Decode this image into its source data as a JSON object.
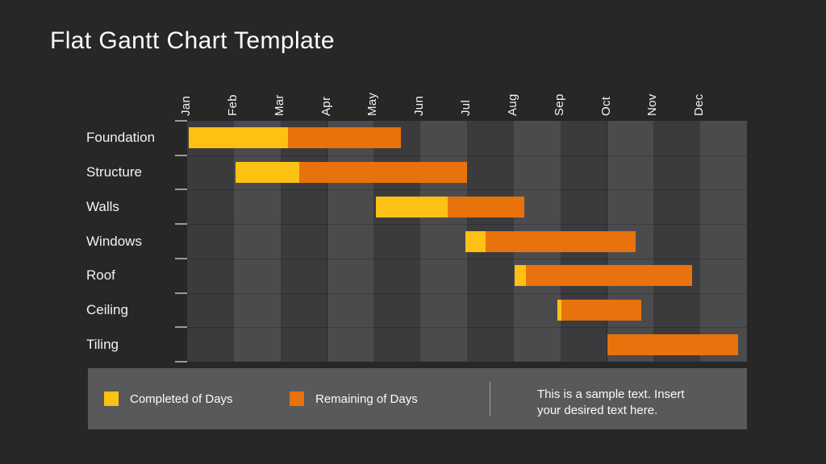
{
  "title": "Flat Gantt Chart Template",
  "colors": {
    "background": "#272728",
    "completed": "#FDC113",
    "remaining": "#E8720C",
    "plot_column_dark": "#3B3B3E",
    "plot_column_light": "#4B4B4E",
    "legend_background": "#58595B",
    "tick": "#9A9A9A",
    "text": "#F2F2F2"
  },
  "chart_data": {
    "type": "gantt",
    "title": "Flat Gantt Chart Template",
    "x_axis": {
      "unit": "months",
      "labels": [
        "Jan",
        "Feb",
        "Mar",
        "Apr",
        "May",
        "Jun",
        "Jul",
        "Aug",
        "Sep",
        "Oct",
        "Nov",
        "Dec"
      ],
      "range": [
        0,
        12
      ],
      "column_shading": "alternating"
    },
    "tasks": [
      {
        "name": "Foundation",
        "start": 0.03,
        "completed_until": 2.16,
        "end": 4.58
      },
      {
        "name": "Structure",
        "start": 1.03,
        "completed_until": 2.41,
        "end": 6.0
      },
      {
        "name": "Walls",
        "start": 4.04,
        "completed_until": 5.58,
        "end": 7.22
      },
      {
        "name": "Windows",
        "start": 5.96,
        "completed_until": 6.4,
        "end": 9.61
      },
      {
        "name": "Roof",
        "start": 7.02,
        "completed_until": 7.27,
        "end": 10.83
      },
      {
        "name": "Ceiling",
        "start": 7.93,
        "completed_until": 8.03,
        "end": 9.73
      },
      {
        "name": "Tiling",
        "start": 9.01,
        "completed_until": 9.01,
        "end": 11.81
      }
    ],
    "legend": [
      {
        "label": "Completed of Days",
        "color": "#FDC113"
      },
      {
        "label": "Remaining of Days",
        "color": "#E8720C"
      }
    ]
  },
  "legend_note": {
    "line1": "This is a sample text. Insert",
    "line2": "your desired text here."
  }
}
